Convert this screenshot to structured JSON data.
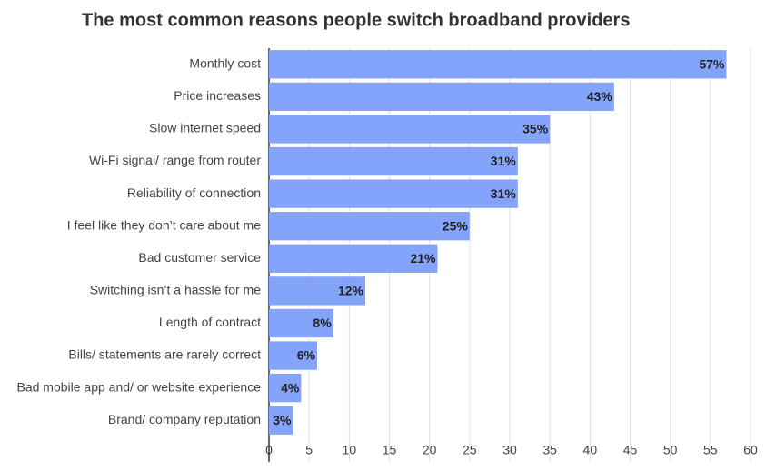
{
  "chart_data": {
    "type": "bar",
    "orientation": "horizontal",
    "title": "The most common reasons people switch broadband providers",
    "categories": [
      "Monthly cost",
      "Price increases",
      "Slow internet speed",
      "Wi-Fi signal/ range from router",
      "Reliability of connection",
      "I feel like they don’t care about me",
      "Bad customer service",
      "Switching isn’t a hassle for me",
      "Length of contract",
      "Bills/ statements are rarely correct",
      "Bad mobile app and/ or website experience",
      "Brand/ company reputation"
    ],
    "values": [
      57,
      43,
      35,
      31,
      31,
      25,
      21,
      12,
      8,
      6,
      4,
      3
    ],
    "value_labels": [
      "57%",
      "43%",
      "35%",
      "31%",
      "31%",
      "25%",
      "21%",
      "12%",
      "8%",
      "6%",
      "4%",
      "3%"
    ],
    "color": "#84a4fc",
    "xlim": [
      0,
      60
    ],
    "xticks": [
      0,
      5,
      10,
      15,
      20,
      25,
      30,
      35,
      40,
      45,
      50,
      55,
      60
    ],
    "grid": true
  }
}
